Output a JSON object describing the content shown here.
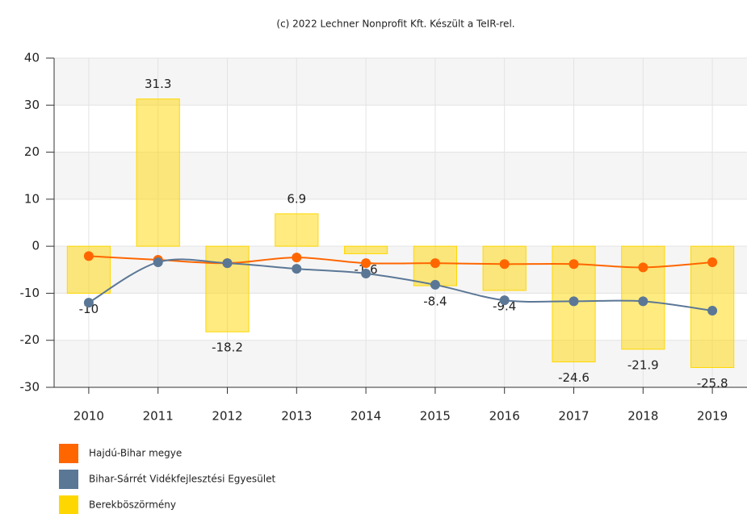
{
  "chart_data": {
    "type": "bar_line",
    "title": "(c) 2022 Lechner Nonprofit Kft. Készült a TeIR-rel.",
    "categories": [
      "2010",
      "2011",
      "2012",
      "2013",
      "2014",
      "2015",
      "2016",
      "2017",
      "2018",
      "2019"
    ],
    "series": [
      {
        "name": "Hajdú-Bihar megye",
        "color": "#ff6600",
        "kind": "line",
        "values": [
          -2.1,
          -2.9,
          -3.6,
          -2.4,
          -3.6,
          -3.6,
          -3.8,
          -3.8,
          -4.5,
          -3.4
        ]
      },
      {
        "name": "Bihar-Sárrét Vidékfejlesztési Egyesület",
        "color": "#5b7796",
        "kind": "line",
        "values": [
          -12,
          -3.4,
          -3.6,
          -4.8,
          -5.8,
          -8.2,
          -11.5,
          -11.7,
          -11.7,
          -13.7
        ]
      },
      {
        "name": "Berekböszörmény",
        "color": "#ffd700",
        "kind": "bar",
        "values": [
          -10,
          31.3,
          -18.2,
          6.9,
          -1.6,
          -8.4,
          -9.4,
          -24.6,
          -21.9,
          -25.8
        ]
      }
    ],
    "ylim": [
      -30,
      40
    ],
    "yticks": [
      -30,
      -20,
      -10,
      0,
      10,
      20,
      30,
      40
    ],
    "grid": true
  }
}
